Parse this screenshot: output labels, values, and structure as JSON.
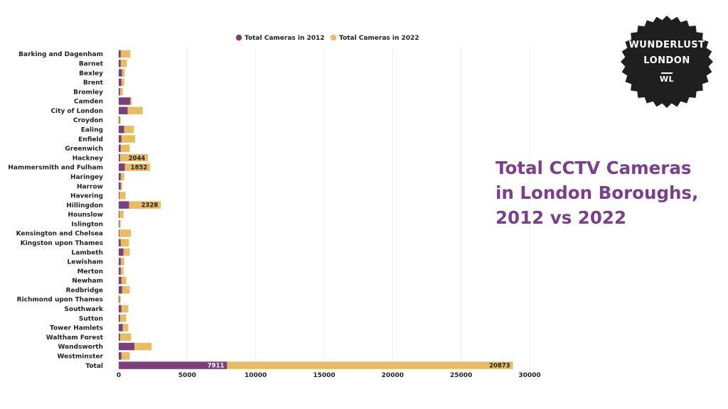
{
  "headline": {
    "line1": "Total CCTV Cameras",
    "line2": "in London Boroughs,",
    "line3": "2012 vs 2022"
  },
  "badge": {
    "line1": "WUNDERLUST",
    "line2": "LONDON",
    "line3": "WL"
  },
  "colors": {
    "series_2012": "#7b3f7e",
    "series_2022": "#e8bc62",
    "headline": "#7b3f8c",
    "badge": "#1f1f1f",
    "grid": "#eeeeee"
  },
  "chart_data": {
    "type": "bar",
    "orientation": "horizontal",
    "stacked": true,
    "legend_position": "top",
    "grid": true,
    "xlim": [
      0,
      30000
    ],
    "x_ticks": [
      0,
      5000,
      10000,
      15000,
      20000,
      25000,
      30000
    ],
    "categories": [
      "Barking and Dagenham",
      "Barnet",
      "Bexley",
      "Brent",
      "Bromley",
      "Camden",
      "City of London",
      "Croydon",
      "Ealing",
      "Enfield",
      "Greenwich",
      "Hackney",
      "Hammersmith and Fulham",
      "Haringey",
      "Harrow",
      "Havering",
      "Hillingdon",
      "Hounslow",
      "Islington",
      "Kensington and Chelsea",
      "Kingston upon Thames",
      "Lambeth",
      "Lewisham",
      "Merton",
      "Newham",
      "Redbridge",
      "Richmond upon Thames",
      "Southwark",
      "Sutton",
      "Tower Hamlets",
      "Waltham Forest",
      "Wandsworth",
      "Westminster",
      "Total"
    ],
    "series": [
      {
        "name": "Total Cameras in 2012",
        "values": [
          150,
          150,
          250,
          200,
          100,
          850,
          650,
          50,
          400,
          200,
          150,
          100,
          450,
          150,
          150,
          50,
          750,
          50,
          50,
          50,
          150,
          350,
          150,
          150,
          200,
          250,
          50,
          200,
          100,
          300,
          100,
          1150,
          200,
          7911
        ]
      },
      {
        "name": "Total Cameras in 2022",
        "values": [
          700,
          450,
          200,
          200,
          200,
          100,
          1100,
          100,
          700,
          1000,
          650,
          2044,
          1852,
          250,
          100,
          450,
          2328,
          300,
          100,
          850,
          600,
          450,
          250,
          200,
          350,
          550,
          100,
          500,
          450,
          400,
          800,
          1250,
          600,
          20873
        ]
      }
    ],
    "data_labels": [
      {
        "category": "Hackney",
        "series": 1,
        "text": "2044"
      },
      {
        "category": "Hammersmith and Fulham",
        "series": 1,
        "text": "1852"
      },
      {
        "category": "Hillingdon",
        "series": 1,
        "text": "2328"
      },
      {
        "category": "Total",
        "series": 0,
        "text": "7911"
      },
      {
        "category": "Total",
        "series": 1,
        "text": "20873"
      }
    ]
  }
}
